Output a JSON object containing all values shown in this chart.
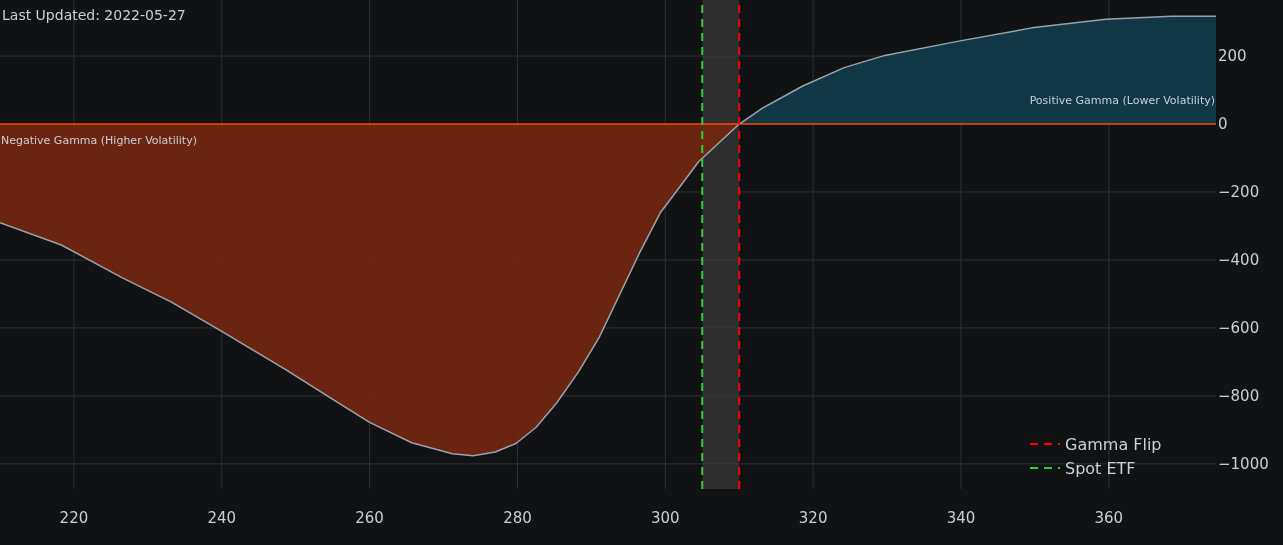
{
  "chart_data": {
    "type": "line",
    "xlim": [
      210,
      374.5
    ],
    "ylim": [
      -1074,
      365
    ],
    "xticks": [
      220,
      240,
      260,
      280,
      300,
      320,
      340,
      360
    ],
    "yticks": [
      {
        "value": -1000,
        "label": "−1000"
      },
      {
        "value": -800,
        "label": "−800"
      },
      {
        "value": -600,
        "label": "−600"
      },
      {
        "value": -400,
        "label": "−400"
      },
      {
        "value": -200,
        "label": "−200"
      },
      0,
      200
    ],
    "grid": true,
    "legend": "bottom right",
    "series": [
      {
        "type": "area",
        "color": "#75270f",
        "x": [
          210,
          218.3,
          226.5,
          233.2,
          240,
          248.6,
          254.7,
          260,
          265.7,
          271.2,
          274,
          277,
          279.8,
          282.5,
          285.3,
          288.3,
          291.1,
          296.5,
          299.3,
          302,
          304.5,
          310
        ],
        "values": [
          -290,
          -356,
          -452,
          -524,
          -610,
          -722,
          -806,
          -878,
          -938,
          -970,
          -976,
          -965,
          -940,
          -893,
          -821,
          -728,
          -626,
          -380,
          -262,
          -184,
          -111,
          0
        ]
      },
      {
        "type": "area",
        "color": "#0f3d4a",
        "x": [
          310,
          313.1,
          318.6,
          324.2,
          329.7,
          339.7,
          349.6,
          359.6,
          368.5,
          374.5
        ],
        "values": [
          0,
          46,
          112,
          166,
          202,
          244,
          283,
          308,
          317,
          317
        ]
      },
      {
        "type": "line",
        "color": "#9aa3ad",
        "x": [
          210,
          218.3,
          226.5,
          233.2,
          240,
          248.6,
          254.7,
          260,
          265.7,
          271.2,
          274,
          277,
          279.8,
          282.5,
          285.3,
          288.3,
          291.1,
          296.5,
          299.3,
          302,
          304.5,
          310,
          313.1,
          318.6,
          324.2,
          329.7,
          339.7,
          349.6,
          359.6,
          368.5,
          374.5
        ],
        "values": [
          -290,
          -356,
          -452,
          -524,
          -610,
          -722,
          -806,
          -878,
          -938,
          -970,
          -976,
          -965,
          -940,
          -893,
          -821,
          -728,
          -626,
          -380,
          -262,
          -184,
          -111,
          0,
          46,
          112,
          166,
          202,
          244,
          283,
          308,
          317,
          317
        ]
      },
      {
        "name": "Gamma Flip",
        "color": "#ff0000",
        "line_style": "dashed",
        "x": [
          310,
          310
        ],
        "values": [
          -1074,
          365
        ]
      },
      {
        "name": "Spot ETF",
        "color": "#32cd32",
        "line_style": "dashed",
        "x": [
          305,
          305
        ],
        "values": [
          -1074,
          365
        ]
      }
    ],
    "ref_lines": [
      {
        "axis": "y",
        "value": 0,
        "color": "#ff4500",
        "line_style": "solid"
      }
    ],
    "bands": [
      {
        "axis": "x",
        "from": 305,
        "to": 310,
        "color": "#3a3a3c"
      }
    ],
    "annotations": [
      "Last Updated: 2022-05-27",
      {
        "text": "Negative Gamma (Higher Volatility)",
        "x": 210,
        "y": -60
      },
      {
        "text": "Positive Gamma (Lower Volatility)",
        "x": 374.5,
        "y": 60
      }
    ]
  }
}
